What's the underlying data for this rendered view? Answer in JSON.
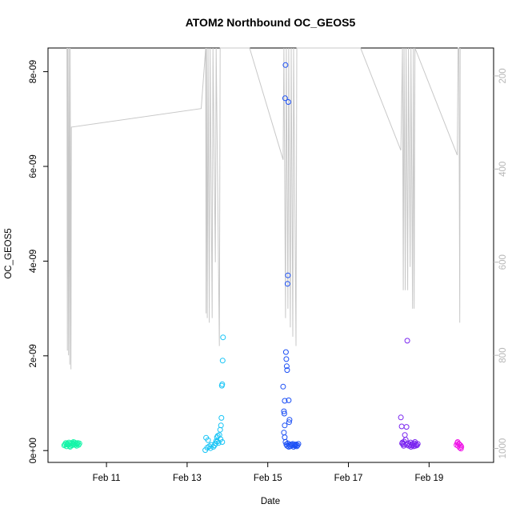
{
  "chart_data": {
    "type": "scatter",
    "title": "ATOM2 Northbound OC_GEOS5",
    "xlabel": "Date",
    "ylabel": "OC_GEOS5",
    "x_ticks": [
      "Feb 11",
      "Feb 13",
      "Feb 15",
      "Feb 17",
      "Feb 19"
    ],
    "x_tick_values": [
      11,
      13,
      15,
      17,
      19
    ],
    "xlim": [
      9.55,
      20.6
    ],
    "y_ticks": [
      "0e+00",
      "2e-09",
      "4e-09",
      "6e-09",
      "8e-09"
    ],
    "y_tick_values": [
      0,
      2e-09,
      4e-09,
      6e-09,
      8e-09
    ],
    "ylim": [
      -2.5e-10,
      8.5e-09
    ],
    "y2_ticks": [
      "200",
      "400",
      "600",
      "800",
      "1000"
    ],
    "y2_tick_values": [
      200,
      400,
      600,
      800,
      1000
    ],
    "y2lim": [
      1030,
      140
    ],
    "y2_reversed": true,
    "grid": false,
    "colors": {
      "axis": "#000000",
      "right_axis": "#b8b8b8",
      "pressure_line": "#c8c8c8"
    },
    "series": [
      {
        "color": "#14f5a8",
        "points": [
          [
            9.95,
            1.1e-10
          ],
          [
            9.97,
            1.3e-10
          ],
          [
            9.99,
            1.6e-10
          ],
          [
            10.01,
            9e-11
          ],
          [
            10.03,
            1.5e-10
          ],
          [
            10.05,
            1.2e-10
          ],
          [
            10.07,
            1.7e-10
          ],
          [
            10.09,
            1e-10
          ],
          [
            10.11,
            1.4e-10
          ],
          [
            10.13,
            1.6e-10
          ],
          [
            10.15,
            1.1e-10
          ],
          [
            10.17,
            1.5e-10
          ],
          [
            10.19,
            1.3e-10
          ],
          [
            10.21,
            1.7e-10
          ],
          [
            10.23,
            1.2e-10
          ],
          [
            10.25,
            1.5e-10
          ],
          [
            10.27,
            1.4e-10
          ],
          [
            10.29,
            1.6e-10
          ],
          [
            10.31,
            1.2e-10
          ],
          [
            10.33,
            1.5e-10
          ],
          [
            10.02,
            1.3e-10
          ],
          [
            10.1,
            8e-11
          ],
          [
            10.18,
            1.8e-10
          ],
          [
            10.26,
            1e-10
          ]
        ]
      },
      {
        "color": "#16c4f6",
        "points": [
          [
            13.45,
            1e-11
          ],
          [
            13.5,
            6e-11
          ],
          [
            13.55,
            9e-11
          ],
          [
            13.6,
            1.2e-10
          ],
          [
            13.65,
            8e-11
          ],
          [
            13.7,
            1.5e-10
          ],
          [
            13.72,
            2e-10
          ],
          [
            13.74,
            2.8e-10
          ],
          [
            13.76,
            3.1e-10
          ],
          [
            13.78,
            1.6e-10
          ],
          [
            13.8,
            3.3e-10
          ],
          [
            13.82,
            4.4e-10
          ],
          [
            13.84,
            5.3e-10
          ],
          [
            13.85,
            6.9e-10
          ],
          [
            13.86,
            1.37e-09
          ],
          [
            13.87,
            1.4e-09
          ],
          [
            13.88,
            1.9e-09
          ],
          [
            13.89,
            2.39e-09
          ],
          [
            13.47,
            2.7e-10
          ],
          [
            13.52,
            2.2e-10
          ],
          [
            13.58,
            5e-11
          ],
          [
            13.68,
            1.1e-10
          ],
          [
            13.75,
            1.9e-10
          ],
          [
            13.83,
            2.4e-10
          ],
          [
            13.87,
            1.8e-10
          ]
        ]
      },
      {
        "color": "#1b4ff5",
        "points": [
          [
            15.38,
            1.35e-09
          ],
          [
            15.4,
            8.3e-10
          ],
          [
            15.41,
            7.8e-10
          ],
          [
            15.42,
            5.3e-10
          ],
          [
            15.43,
            7.44e-09
          ],
          [
            15.44,
            8.14e-09
          ],
          [
            15.45,
            2.08e-09
          ],
          [
            15.46,
            1.93e-09
          ],
          [
            15.47,
            1.78e-09
          ],
          [
            15.48,
            1.7e-09
          ],
          [
            15.49,
            3.52e-09
          ],
          [
            15.5,
            3.7e-09
          ],
          [
            15.51,
            7.36e-09
          ],
          [
            15.52,
            1.06e-09
          ],
          [
            15.53,
            6e-10
          ],
          [
            15.54,
            6.5e-10
          ],
          [
            15.4,
            3.8e-10
          ],
          [
            15.42,
            2.8e-10
          ],
          [
            15.44,
            1.8e-10
          ],
          [
            15.46,
            1.3e-10
          ],
          [
            15.48,
            1e-10
          ],
          [
            15.5,
            1.5e-10
          ],
          [
            15.52,
            8e-11
          ],
          [
            15.54,
            1.2e-10
          ],
          [
            15.56,
            9e-11
          ],
          [
            15.58,
            1.3e-10
          ],
          [
            15.6,
            1.1e-10
          ],
          [
            15.62,
            1.4e-10
          ],
          [
            15.64,
            8e-11
          ],
          [
            15.66,
            1.2e-10
          ],
          [
            15.68,
            1e-10
          ],
          [
            15.7,
            1.3e-10
          ],
          [
            15.72,
            9e-11
          ],
          [
            15.74,
            1.1e-10
          ],
          [
            15.76,
            1.4e-10
          ],
          [
            15.42,
            1.05e-09
          ]
        ]
      },
      {
        "color": "#7a25f0",
        "points": [
          [
            18.3,
            7e-10
          ],
          [
            18.32,
            5.1e-10
          ],
          [
            18.34,
            1.7e-10
          ],
          [
            18.36,
            1.3e-10
          ],
          [
            18.38,
            1.9e-10
          ],
          [
            18.4,
            3.3e-10
          ],
          [
            18.42,
            2.3e-10
          ],
          [
            18.44,
            5e-10
          ],
          [
            18.46,
            2.32e-09
          ],
          [
            18.48,
            1.5e-10
          ],
          [
            18.5,
            1e-10
          ],
          [
            18.52,
            1.3e-10
          ],
          [
            18.54,
            1.7e-10
          ],
          [
            18.56,
            1.1e-10
          ],
          [
            18.58,
            1.4e-10
          ],
          [
            18.6,
            1.2e-10
          ],
          [
            18.62,
            9e-11
          ],
          [
            18.64,
            1.5e-10
          ],
          [
            18.66,
            1e-10
          ],
          [
            18.68,
            1.3e-10
          ],
          [
            18.7,
            1.1e-10
          ],
          [
            18.72,
            1.4e-10
          ],
          [
            18.33,
            1.5e-10
          ],
          [
            18.37,
            1e-10
          ],
          [
            18.45,
            1.2e-10
          ],
          [
            18.55,
            8e-11
          ],
          [
            18.65,
            1.8e-10
          ]
        ]
      },
      {
        "color": "#f018e8",
        "points": [
          [
            19.68,
            1.2e-10
          ],
          [
            19.7,
            1.6e-10
          ],
          [
            19.72,
            1e-10
          ],
          [
            19.74,
            1.4e-10
          ],
          [
            19.76,
            6e-11
          ],
          [
            19.78,
            1.1e-10
          ],
          [
            19.8,
            8e-11
          ],
          [
            19.71,
            1.8e-10
          ],
          [
            19.75,
            1.3e-10
          ],
          [
            19.79,
            4e-11
          ]
        ]
      }
    ],
    "pressure_trace": [
      [
        10.02,
        140
      ],
      [
        10.03,
        790
      ],
      [
        10.04,
        140
      ],
      [
        10.06,
        800
      ],
      [
        10.07,
        140
      ],
      [
        10.09,
        820
      ],
      [
        10.1,
        140
      ],
      [
        10.12,
        830
      ],
      [
        10.13,
        310
      ],
      [
        13.35,
        270
      ],
      [
        13.46,
        140
      ],
      [
        13.47,
        710
      ],
      [
        13.48,
        140
      ],
      [
        13.5,
        720
      ],
      [
        13.52,
        140
      ],
      [
        13.55,
        730
      ],
      [
        13.57,
        140
      ],
      [
        13.62,
        720
      ],
      [
        13.64,
        140
      ],
      [
        13.7,
        600
      ],
      [
        13.72,
        140
      ],
      [
        13.8,
        780
      ],
      [
        13.82,
        140
      ],
      [
        13.85,
        130
      ],
      [
        14.55,
        130
      ],
      [
        15.38,
        380
      ],
      [
        15.4,
        140
      ],
      [
        15.44,
        720
      ],
      [
        15.46,
        140
      ],
      [
        15.5,
        700
      ],
      [
        15.52,
        140
      ],
      [
        15.56,
        740
      ],
      [
        15.58,
        140
      ],
      [
        15.62,
        760
      ],
      [
        15.64,
        140
      ],
      [
        15.7,
        780
      ],
      [
        15.72,
        140
      ],
      [
        15.74,
        130
      ],
      [
        17.3,
        130
      ],
      [
        18.3,
        360
      ],
      [
        18.34,
        140
      ],
      [
        18.36,
        660
      ],
      [
        18.38,
        140
      ],
      [
        18.41,
        660
      ],
      [
        18.43,
        140
      ],
      [
        18.47,
        660
      ],
      [
        18.49,
        140
      ],
      [
        18.53,
        610
      ],
      [
        18.55,
        140
      ],
      [
        18.59,
        700
      ],
      [
        18.61,
        140
      ],
      [
        18.63,
        700
      ],
      [
        18.64,
        420
      ],
      [
        18.65,
        140
      ],
      [
        19.7,
        370
      ],
      [
        19.72,
        140
      ],
      [
        19.74,
        140
      ],
      [
        19.76,
        730
      ],
      [
        19.77,
        140
      ]
    ]
  }
}
